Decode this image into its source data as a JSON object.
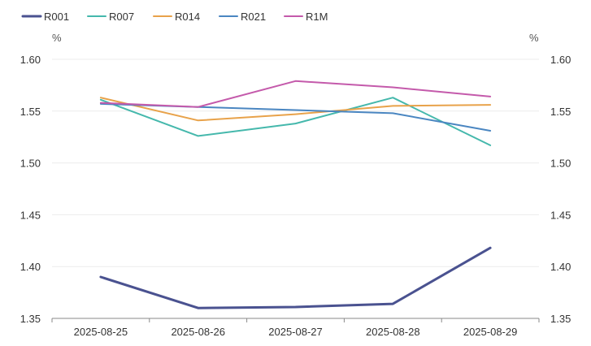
{
  "chart_data": {
    "type": "line",
    "title": "",
    "xlabel": "",
    "y_unit_left": "%",
    "y_unit_right": "%",
    "categories": [
      "2025-08-25",
      "2025-08-26",
      "2025-08-27",
      "2025-08-28",
      "2025-08-29"
    ],
    "ylim": [
      1.35,
      1.6
    ],
    "y_ticks": [
      "1.35",
      "1.40",
      "1.45",
      "1.50",
      "1.55",
      "1.60"
    ],
    "grid": true,
    "legend_position": "top-left",
    "series": [
      {
        "name": "R001",
        "color": "#4a5290",
        "values": [
          1.39,
          1.36,
          1.361,
          1.364,
          1.418
        ]
      },
      {
        "name": "R007",
        "color": "#45b8ac",
        "values": [
          1.561,
          1.526,
          1.538,
          1.563,
          1.517
        ]
      },
      {
        "name": "R014",
        "color": "#e8a24a",
        "values": [
          1.563,
          1.541,
          1.547,
          1.555,
          1.556
        ]
      },
      {
        "name": "R021",
        "color": "#4a86c1",
        "values": [
          1.557,
          1.554,
          1.551,
          1.548,
          1.531
        ]
      },
      {
        "name": "R1M",
        "color": "#c45aab",
        "values": [
          1.558,
          1.554,
          1.579,
          1.573,
          1.564
        ]
      }
    ]
  }
}
